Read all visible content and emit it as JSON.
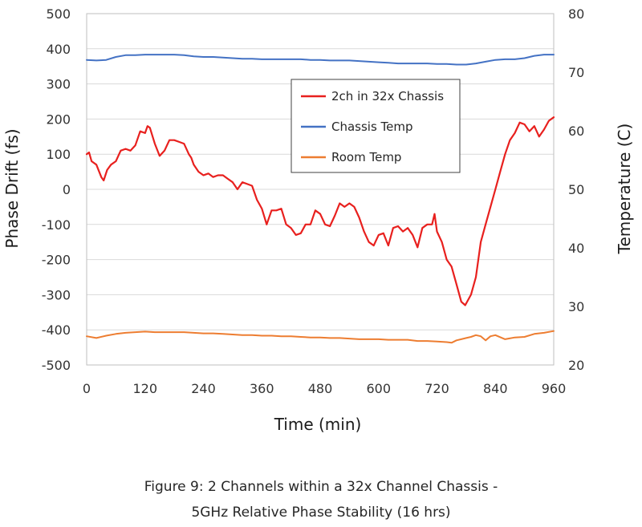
{
  "chart_data": {
    "type": "line",
    "xlabel": "Time (min)",
    "ylabel": "Phase Drift (fs)",
    "ylabel_right": "Temperature (C)",
    "xlim": [
      0,
      960
    ],
    "ylim": [
      -500,
      500
    ],
    "ylim_right": [
      20,
      80
    ],
    "x_ticks": [
      "0",
      "120",
      "240",
      "360",
      "480",
      "600",
      "720",
      "840",
      "960"
    ],
    "y_ticks": [
      "500",
      "400",
      "300",
      "200",
      "100",
      "0",
      "-100",
      "-200",
      "-300",
      "-400",
      "-500"
    ],
    "y_ticks_right": [
      "80",
      "70",
      "60",
      "50",
      "40",
      "30",
      "20"
    ],
    "grid": "horizontal",
    "legend_placement": "center-right",
    "series": [
      {
        "name": "2ch in 32x Chassis",
        "axis": "left",
        "color": "#e8201e",
        "x": [
          0,
          5,
          10,
          20,
          30,
          35,
          42,
          50,
          60,
          70,
          80,
          90,
          100,
          110,
          120,
          125,
          130,
          140,
          150,
          160,
          170,
          180,
          190,
          200,
          210,
          215,
          220,
          230,
          240,
          250,
          260,
          270,
          280,
          290,
          300,
          310,
          320,
          330,
          340,
          350,
          360,
          370,
          380,
          390,
          400,
          410,
          420,
          430,
          440,
          450,
          460,
          470,
          480,
          490,
          500,
          510,
          520,
          530,
          540,
          550,
          560,
          570,
          580,
          590,
          600,
          610,
          620,
          630,
          640,
          650,
          660,
          670,
          680,
          690,
          700,
          710,
          715,
          720,
          730,
          740,
          750,
          760,
          770,
          778,
          790,
          800,
          810,
          820,
          830,
          840,
          850,
          860,
          870,
          880,
          890,
          900,
          910,
          920,
          930,
          940,
          950,
          960
        ],
        "values": [
          100,
          105,
          80,
          70,
          35,
          25,
          55,
          70,
          80,
          110,
          115,
          110,
          125,
          165,
          160,
          180,
          175,
          130,
          95,
          110,
          140,
          140,
          135,
          130,
          100,
          90,
          70,
          50,
          40,
          45,
          35,
          40,
          40,
          30,
          20,
          0,
          20,
          15,
          10,
          -30,
          -55,
          -100,
          -60,
          -60,
          -55,
          -100,
          -110,
          -130,
          -125,
          -100,
          -100,
          -60,
          -70,
          -100,
          -105,
          -75,
          -40,
          -50,
          -40,
          -50,
          -80,
          -120,
          -150,
          -160,
          -130,
          -125,
          -160,
          -110,
          -105,
          -120,
          -110,
          -130,
          -165,
          -110,
          -100,
          -100,
          -70,
          -120,
          -150,
          -200,
          -220,
          -270,
          -320,
          -330,
          -300,
          -250,
          -150,
          -100,
          -50,
          0,
          50,
          100,
          140,
          160,
          190,
          185,
          165,
          180,
          150,
          170,
          195,
          205
        ]
      },
      {
        "name": "Chassis Temp",
        "axis": "right",
        "color": "#4472c4",
        "x": [
          0,
          20,
          40,
          60,
          80,
          100,
          120,
          140,
          160,
          180,
          200,
          220,
          240,
          260,
          280,
          300,
          320,
          340,
          360,
          380,
          400,
          420,
          440,
          460,
          480,
          500,
          520,
          540,
          560,
          580,
          600,
          620,
          640,
          660,
          680,
          700,
          720,
          740,
          760,
          780,
          800,
          820,
          840,
          860,
          880,
          900,
          920,
          940,
          960
        ],
        "values": [
          72.1,
          72.0,
          72.1,
          72.6,
          72.9,
          72.9,
          73.0,
          73.0,
          73.0,
          73.0,
          72.9,
          72.7,
          72.6,
          72.6,
          72.5,
          72.4,
          72.3,
          72.3,
          72.2,
          72.2,
          72.2,
          72.2,
          72.2,
          72.1,
          72.1,
          72.0,
          72.0,
          72.0,
          71.9,
          71.8,
          71.7,
          71.6,
          71.5,
          71.5,
          71.5,
          71.5,
          71.4,
          71.4,
          71.3,
          71.3,
          71.5,
          71.8,
          72.1,
          72.2,
          72.2,
          72.4,
          72.8,
          73.0,
          73.0
        ]
      },
      {
        "name": "Room Temp",
        "axis": "right",
        "color": "#ed7d31",
        "x": [
          0,
          20,
          40,
          60,
          80,
          100,
          120,
          140,
          160,
          180,
          200,
          220,
          240,
          260,
          280,
          300,
          320,
          340,
          360,
          380,
          400,
          420,
          440,
          460,
          480,
          500,
          520,
          540,
          560,
          580,
          600,
          620,
          640,
          660,
          680,
          700,
          720,
          740,
          750,
          760,
          770,
          780,
          790,
          800,
          810,
          820,
          830,
          840,
          860,
          880,
          900,
          920,
          940,
          960
        ],
        "values": [
          24.9,
          24.6,
          25.0,
          25.3,
          25.5,
          25.6,
          25.7,
          25.6,
          25.6,
          25.6,
          25.6,
          25.5,
          25.4,
          25.4,
          25.3,
          25.2,
          25.1,
          25.1,
          25.0,
          25.0,
          24.9,
          24.9,
          24.8,
          24.7,
          24.7,
          24.6,
          24.6,
          24.5,
          24.4,
          24.4,
          24.4,
          24.3,
          24.3,
          24.3,
          24.1,
          24.1,
          24.0,
          23.9,
          23.8,
          24.2,
          24.4,
          24.6,
          24.8,
          25.1,
          24.9,
          24.2,
          24.9,
          25.1,
          24.4,
          24.7,
          24.8,
          25.3,
          25.5,
          25.8
        ]
      }
    ]
  },
  "caption": {
    "line1": "Figure 9:  2 Channels within a 32x Channel Chassis -",
    "line2": "5GHz Relative Phase Stability (16 hrs)"
  }
}
